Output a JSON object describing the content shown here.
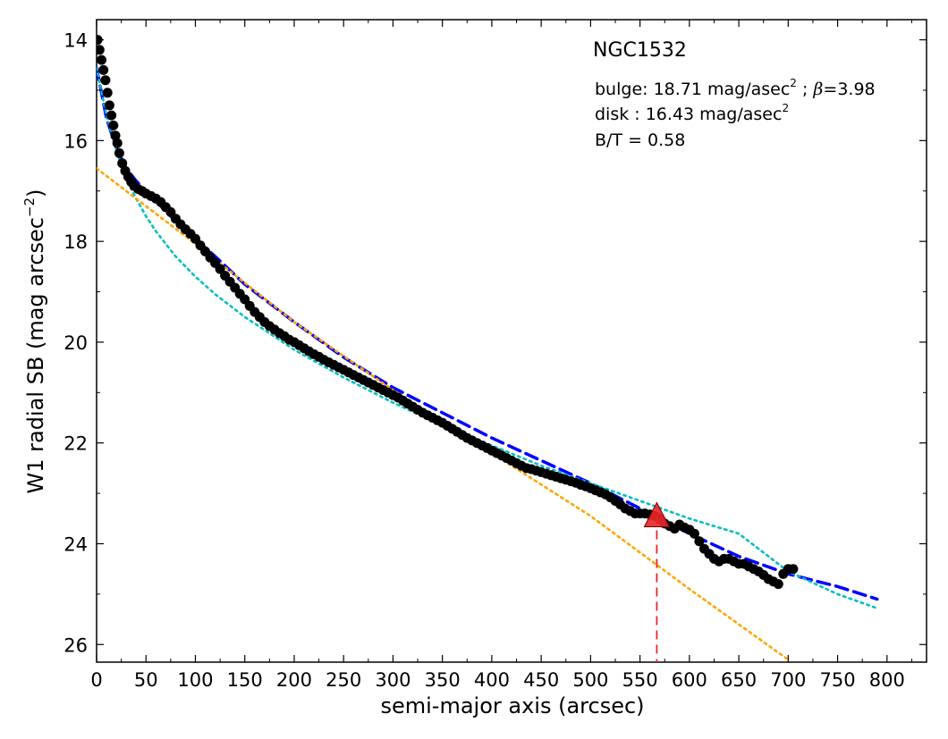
{
  "chart_data": {
    "type": "scatter",
    "title": "",
    "xlabel": "semi-major axis (arcsec)",
    "ylabel_main": "W1 radial SB (mag arcsec",
    "ylabel_sup": "−2",
    "ylabel_close": ")",
    "xlim": [
      0,
      840
    ],
    "ylim": [
      26.35,
      13.6
    ],
    "y_inverted": true,
    "grid": false,
    "x_ticks": [
      0,
      50,
      100,
      150,
      200,
      250,
      300,
      350,
      400,
      450,
      500,
      550,
      600,
      650,
      700,
      750,
      800
    ],
    "y_ticks": [
      14,
      16,
      18,
      20,
      22,
      24,
      26
    ],
    "annotations": {
      "galaxy": "NGC1532",
      "bulge_prefix": "bulge: 18.71 mag/asec",
      "bulge_sup": "2",
      "bulge_sep": " ; ",
      "bulge_beta": "β",
      "bulge_beta_val": "=3.98",
      "disk_prefix": "disk  : 16.43 mag/asec",
      "disk_sup": "2",
      "bt": "B/T = 0.58"
    },
    "series": [
      {
        "role": "observed profile",
        "style": "black filled circles",
        "color": "#000000",
        "x": [
          1,
          3,
          5,
          7,
          9,
          11,
          13,
          15,
          17,
          19,
          21,
          23,
          26,
          29,
          32,
          35,
          38,
          42,
          46,
          50,
          55,
          60,
          65,
          70,
          75,
          80,
          85,
          90,
          95,
          100,
          105,
          110,
          115,
          120,
          125,
          130,
          135,
          140,
          145,
          150,
          155,
          160,
          165,
          170,
          175,
          180,
          185,
          190,
          195,
          200,
          205,
          210,
          215,
          220,
          225,
          230,
          235,
          240,
          245,
          250,
          255,
          260,
          265,
          270,
          275,
          280,
          285,
          290,
          295,
          300,
          305,
          310,
          315,
          320,
          325,
          330,
          335,
          340,
          345,
          350,
          355,
          360,
          365,
          370,
          375,
          380,
          385,
          390,
          395,
          400,
          405,
          410,
          415,
          420,
          425,
          430,
          435,
          440,
          445,
          450,
          455,
          460,
          465,
          470,
          475,
          480,
          485,
          490,
          495,
          500,
          505,
          510,
          515,
          520,
          525,
          530,
          535,
          540,
          545,
          550,
          555,
          560,
          565,
          570,
          575,
          580,
          585,
          590,
          595,
          600,
          605,
          610,
          615,
          620,
          625,
          630,
          635,
          640,
          645,
          650,
          655,
          660,
          665,
          670,
          675,
          680,
          685,
          690,
          695,
          700,
          705
        ],
        "y": [
          14.0,
          14.2,
          14.4,
          14.6,
          14.8,
          15.05,
          15.3,
          15.5,
          15.7,
          15.9,
          16.05,
          16.25,
          16.45,
          16.6,
          16.72,
          16.82,
          16.9,
          16.96,
          17.0,
          17.05,
          17.1,
          17.15,
          17.22,
          17.32,
          17.42,
          17.55,
          17.66,
          17.76,
          17.85,
          17.95,
          18.08,
          18.2,
          18.32,
          18.43,
          18.55,
          18.68,
          18.8,
          18.92,
          19.04,
          19.15,
          19.28,
          19.4,
          19.5,
          19.6,
          19.68,
          19.75,
          19.82,
          19.88,
          19.95,
          20.0,
          20.06,
          20.12,
          20.18,
          20.24,
          20.29,
          20.35,
          20.4,
          20.45,
          20.5,
          20.55,
          20.6,
          20.65,
          20.7,
          20.75,
          20.8,
          20.85,
          20.9,
          20.95,
          21.0,
          21.05,
          21.1,
          21.16,
          21.22,
          21.28,
          21.34,
          21.4,
          21.45,
          21.5,
          21.55,
          21.6,
          21.66,
          21.72,
          21.78,
          21.84,
          21.9,
          21.95,
          22.0,
          22.05,
          22.1,
          22.15,
          22.2,
          22.25,
          22.3,
          22.35,
          22.4,
          22.45,
          22.5,
          22.52,
          22.55,
          22.58,
          22.61,
          22.64,
          22.67,
          22.7,
          22.73,
          22.76,
          22.79,
          22.83,
          22.86,
          22.9,
          22.94,
          22.98,
          23.02,
          23.08,
          23.15,
          23.22,
          23.3,
          23.35,
          23.4,
          23.4,
          23.4,
          23.42,
          23.45,
          23.5,
          23.6,
          23.65,
          23.7,
          23.62,
          23.68,
          23.72,
          23.8,
          23.95,
          24.1,
          24.2,
          24.3,
          24.35,
          24.3,
          24.3,
          24.35,
          24.4,
          24.4,
          24.45,
          24.5,
          24.55,
          24.62,
          24.7,
          24.75,
          24.8,
          24.6,
          24.5,
          24.5
        ]
      },
      {
        "role": "total model",
        "style": "dashed",
        "color": "#0000ff",
        "x": [
          0,
          10,
          20,
          30,
          40,
          50,
          60,
          80,
          100,
          120,
          150,
          200,
          250,
          300,
          350,
          400,
          450,
          500,
          550,
          600,
          650,
          700,
          750,
          790
        ],
        "y": [
          14.55,
          15.55,
          16.15,
          16.55,
          16.8,
          17.0,
          17.2,
          17.6,
          17.95,
          18.3,
          18.85,
          19.6,
          20.3,
          20.9,
          21.4,
          21.9,
          22.35,
          22.8,
          23.3,
          23.8,
          24.25,
          24.6,
          24.85,
          25.1
        ]
      },
      {
        "role": "bulge component",
        "style": "dotted",
        "color": "#00bfbf",
        "x": [
          0,
          10,
          20,
          30,
          40,
          50,
          60,
          80,
          100,
          120,
          150,
          200,
          250,
          300,
          350,
          400,
          450,
          500,
          550,
          600,
          650,
          700,
          750,
          790
        ],
        "y": [
          14.55,
          15.5,
          16.2,
          16.75,
          17.15,
          17.5,
          17.8,
          18.3,
          18.7,
          19.05,
          19.5,
          20.15,
          20.7,
          21.2,
          21.65,
          22.05,
          22.45,
          22.8,
          23.15,
          23.5,
          23.8,
          24.55,
          25.0,
          25.28
        ]
      },
      {
        "role": "disk component",
        "style": "dotted",
        "color": "#ffa500",
        "x": [
          0,
          100,
          200,
          300,
          400,
          500,
          600,
          700
        ],
        "y": [
          16.55,
          18.05,
          19.6,
          20.95,
          22.2,
          23.45,
          24.9,
          26.3
        ]
      }
    ],
    "marker": {
      "shape": "triangle",
      "color": "#e8262a",
      "x": 567,
      "y": 23.45
    },
    "guide_line": {
      "style": "dashed",
      "color": "#e8262a",
      "x": 567
    }
  }
}
